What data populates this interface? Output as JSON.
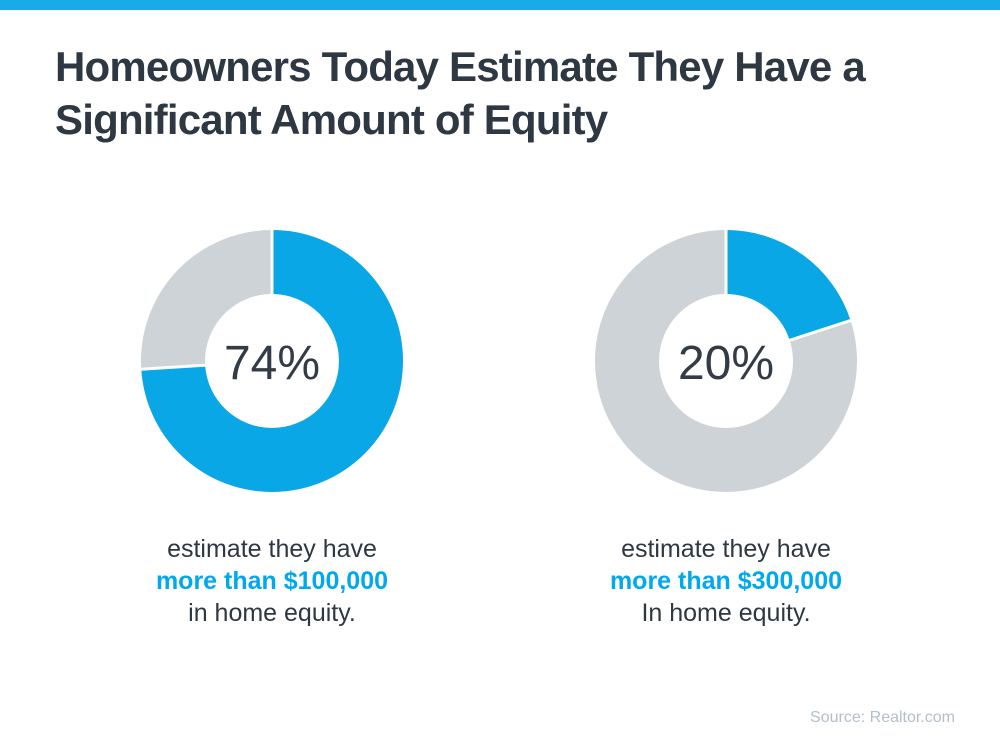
{
  "page": {
    "background": "#ffffff",
    "top_bar_color": "#17abe9"
  },
  "colors": {
    "accent_blue": "#0aa7e6",
    "track_gray": "#cdd3d7",
    "title_dark": "#2e3842",
    "percent_dark": "#333c46",
    "caption_dark": "#2e3842",
    "caption_blue": "#00a9ee",
    "source_gray": "#b2c0c9"
  },
  "header": {
    "title_line1": "Homeowners Today Estimate They Have a",
    "title_line2": "Significant Amount of Equity"
  },
  "chart_data": [
    {
      "type": "pie",
      "variant": "donut",
      "value_label": "74%",
      "start_angle_deg": 0,
      "direction": "clockwise",
      "legend_position": "none",
      "segments": [
        {
          "name": "estimate they have more than $100,000 in home equity",
          "value": 74,
          "color": "#0aa7e6"
        },
        {
          "name": "other",
          "value": 26,
          "color": "#cdd3d7"
        }
      ],
      "caption_line1": "estimate they have",
      "caption_line2": "more than $100,000",
      "caption_line3": "in home equity."
    },
    {
      "type": "pie",
      "variant": "donut",
      "value_label": "20%",
      "start_angle_deg": 0,
      "direction": "clockwise",
      "legend_position": "none",
      "segments": [
        {
          "name": "estimate they have more than $300,000 in home equity",
          "value": 20,
          "color": "#0aa7e6"
        },
        {
          "name": "other",
          "value": 80,
          "color": "#cdd3d7"
        }
      ],
      "caption_line1": "estimate they have",
      "caption_line2": "more than $300,000",
      "caption_line3": "In home equity."
    }
  ],
  "footer": {
    "source": "Source: Realtor.com"
  }
}
